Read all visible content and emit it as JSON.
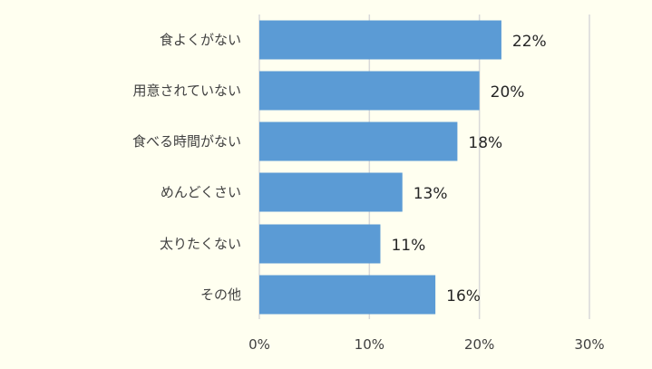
{
  "chart_data": {
    "type": "bar",
    "orientation": "horizontal",
    "categories": [
      "食よくがない",
      "用意されていない",
      "食べる時間がない",
      "めんどくさい",
      "太りたくない",
      "その他"
    ],
    "values": [
      22,
      20,
      18,
      13,
      11,
      16
    ],
    "data_labels": [
      "22%",
      "20%",
      "18%",
      "13%",
      "11%",
      "16%"
    ],
    "xlim": [
      0,
      30
    ],
    "x_ticks": [
      0,
      10,
      20,
      30
    ],
    "x_tick_labels": [
      "0%",
      "10%",
      "20%",
      "30%"
    ],
    "title": "",
    "xlabel": "",
    "ylabel": "",
    "grid": true,
    "legend": "none",
    "bar_color": "#5b9bd5",
    "background_color": "#fffff0"
  }
}
